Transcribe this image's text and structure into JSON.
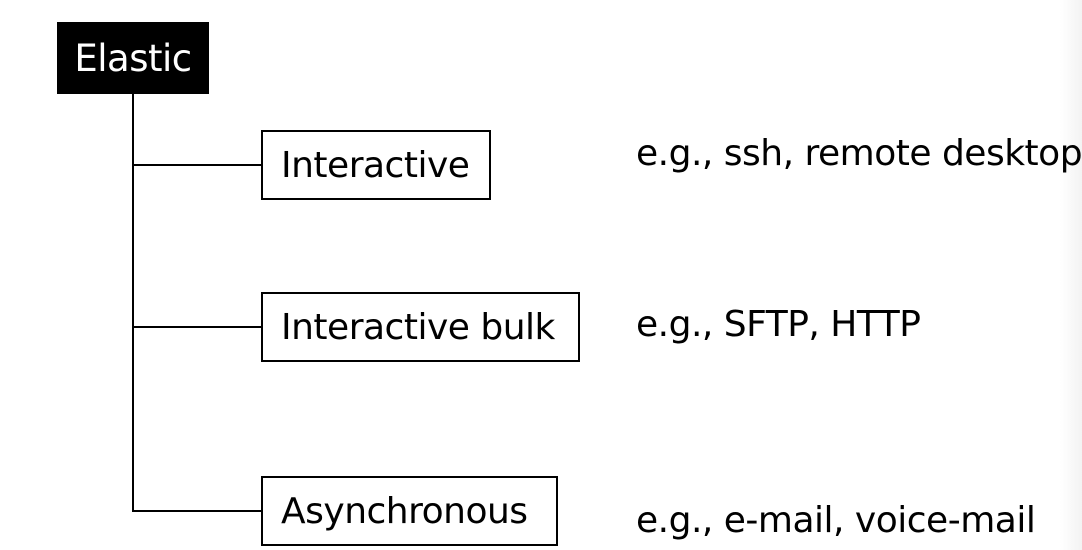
{
  "root": {
    "label": "Elastic"
  },
  "categories": [
    {
      "label": "Interactive",
      "example": "e.g., ssh, remote desktop"
    },
    {
      "label": "Interactive bulk",
      "example": "e.g., SFTP, HTTP"
    },
    {
      "label": "Asynchronous",
      "example": "e.g., e-mail, voice-mail"
    }
  ],
  "colors": {
    "root_fill": "#000000",
    "root_text": "#ffffff",
    "line": "#000000"
  }
}
